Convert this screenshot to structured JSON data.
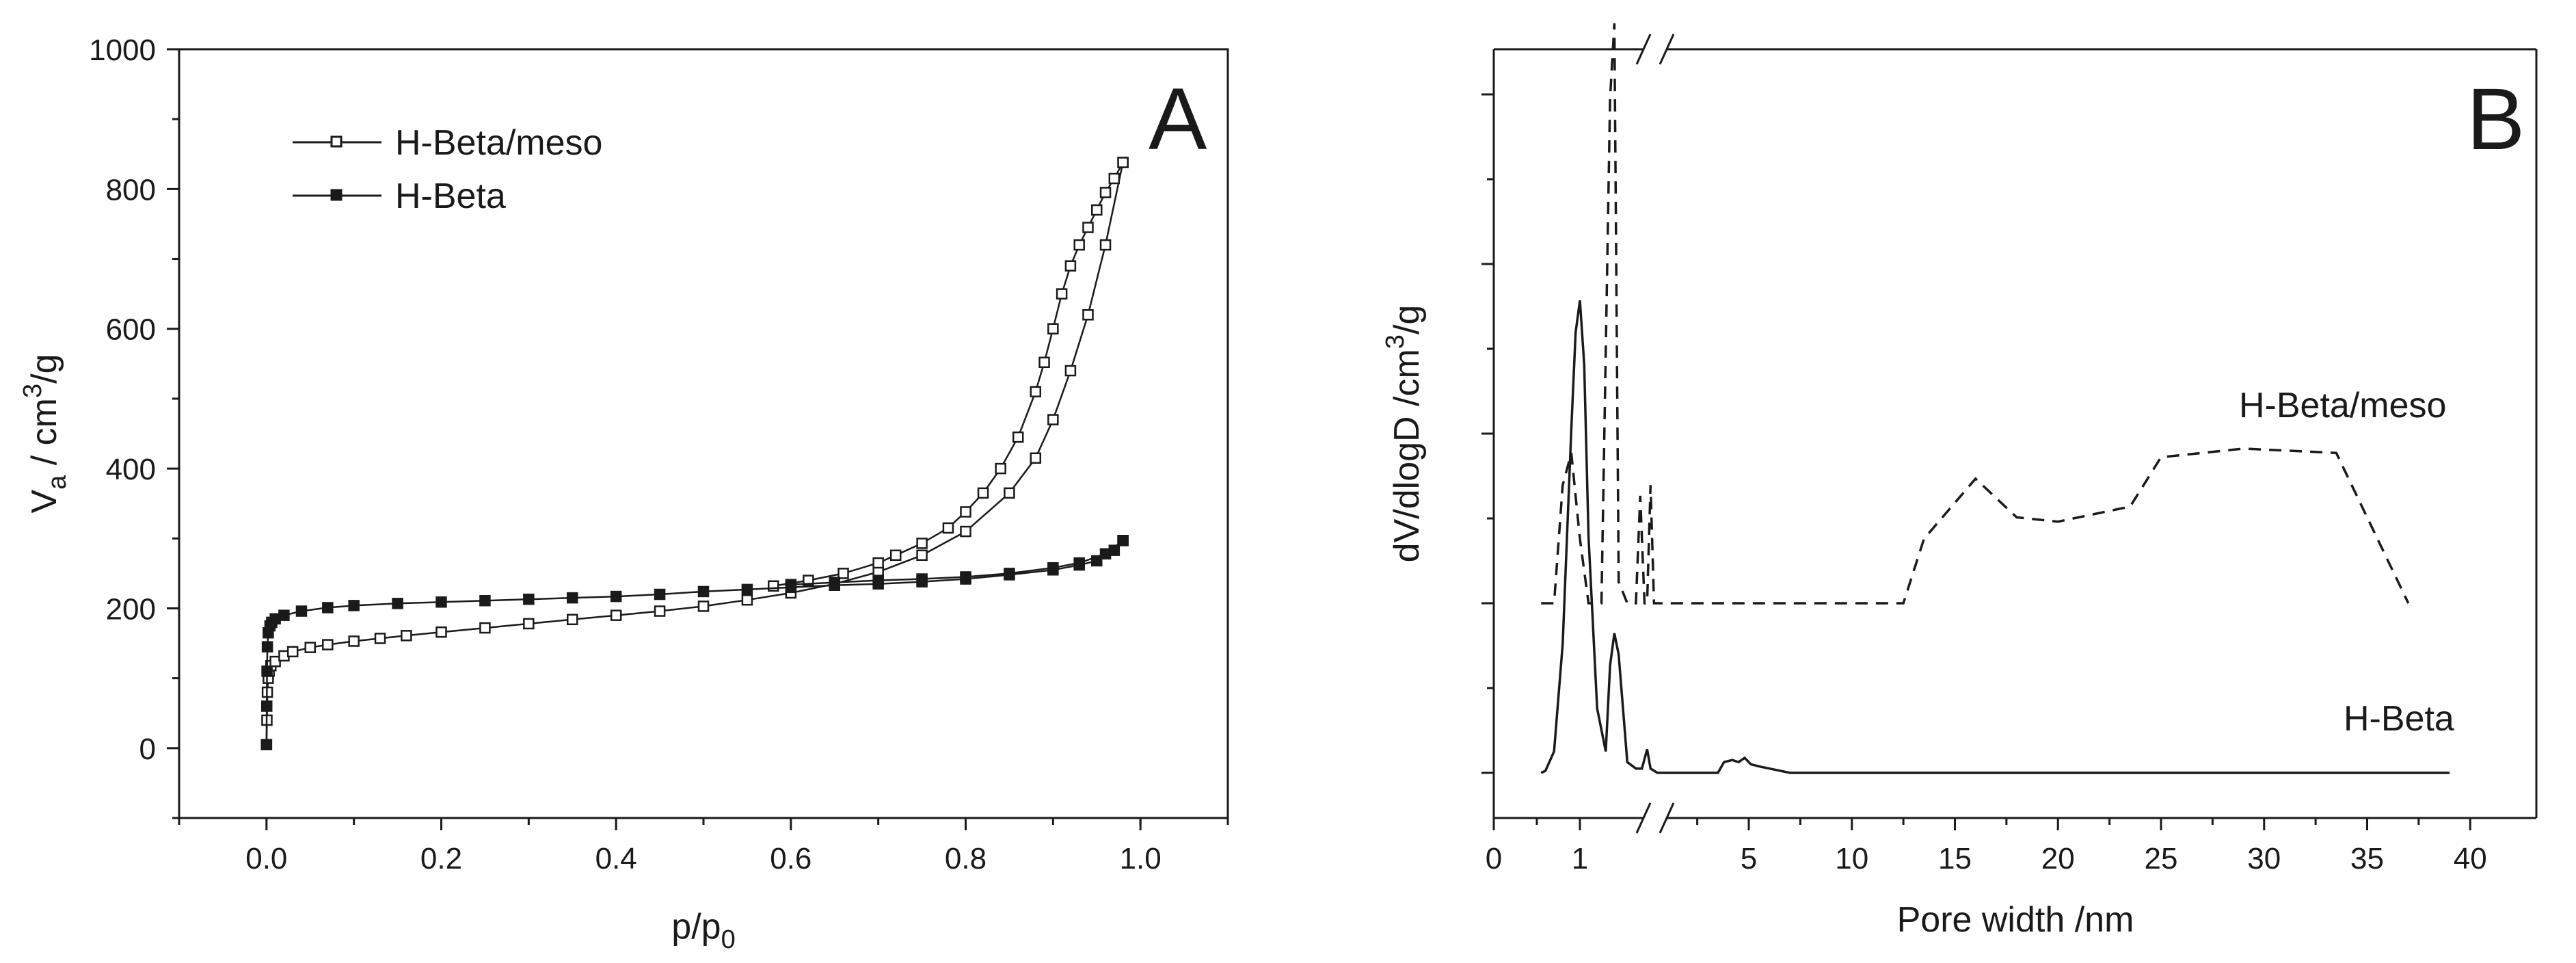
{
  "chart_data": [
    {
      "panel": "A",
      "type": "line",
      "xlabel": "p/p",
      "xlabel_sub": "0",
      "ylabel_parts": [
        "V",
        "a",
        " / cm",
        "3",
        "/g"
      ],
      "xlim": [
        -0.1,
        1.1
      ],
      "ylim": [
        -100,
        1000
      ],
      "xticks": [
        0.0,
        0.2,
        0.4,
        0.6,
        0.8,
        1.0
      ],
      "xtick_labels": [
        "0.0",
        "0.2",
        "0.4",
        "0.6",
        "0.8",
        "1.0"
      ],
      "yticks": [
        0,
        200,
        400,
        600,
        800,
        1000
      ],
      "ytick_labels": [
        "0",
        "200",
        "400",
        "600",
        "800",
        "1000"
      ],
      "grid": false,
      "legend_position": "top-left",
      "series": [
        {
          "name": "H-Beta/meso",
          "marker": "open-square",
          "adsorption": [
            [
              0.0,
              5
            ],
            [
              0.0005,
              40
            ],
            [
              0.001,
              80
            ],
            [
              0.002,
              100
            ],
            [
              0.003,
              110
            ],
            [
              0.005,
              118
            ],
            [
              0.01,
              124
            ],
            [
              0.02,
              132
            ],
            [
              0.03,
              138
            ],
            [
              0.05,
              144
            ],
            [
              0.07,
              148
            ],
            [
              0.1,
              153
            ],
            [
              0.13,
              157
            ],
            [
              0.16,
              161
            ],
            [
              0.2,
              166
            ],
            [
              0.25,
              172
            ],
            [
              0.3,
              178
            ],
            [
              0.35,
              184
            ],
            [
              0.4,
              190
            ],
            [
              0.45,
              196
            ],
            [
              0.5,
              203
            ],
            [
              0.55,
              212
            ],
            [
              0.6,
              222
            ],
            [
              0.65,
              235
            ],
            [
              0.7,
              252
            ],
            [
              0.75,
              276
            ],
            [
              0.8,
              310
            ],
            [
              0.85,
              365
            ],
            [
              0.88,
              415
            ],
            [
              0.9,
              470
            ],
            [
              0.92,
              540
            ],
            [
              0.94,
              620
            ],
            [
              0.96,
              720
            ],
            [
              0.98,
              838
            ]
          ],
          "desorption": [
            [
              0.98,
              838
            ],
            [
              0.97,
              815
            ],
            [
              0.96,
              795
            ],
            [
              0.95,
              770
            ],
            [
              0.94,
              745
            ],
            [
              0.93,
              720
            ],
            [
              0.92,
              690
            ],
            [
              0.91,
              650
            ],
            [
              0.9,
              600
            ],
            [
              0.89,
              552
            ],
            [
              0.88,
              510
            ],
            [
              0.86,
              445
            ],
            [
              0.84,
              400
            ],
            [
              0.82,
              365
            ],
            [
              0.8,
              338
            ],
            [
              0.78,
              315
            ],
            [
              0.75,
              293
            ],
            [
              0.72,
              276
            ],
            [
              0.7,
              265
            ],
            [
              0.66,
              250
            ],
            [
              0.62,
              240
            ],
            [
              0.58,
              232
            ]
          ]
        },
        {
          "name": "H-Beta",
          "marker": "filled-square",
          "adsorption": [
            [
              0.0,
              5
            ],
            [
              0.0003,
              60
            ],
            [
              0.0006,
              110
            ],
            [
              0.001,
              145
            ],
            [
              0.002,
              165
            ],
            [
              0.004,
              175
            ],
            [
              0.006,
              180
            ],
            [
              0.01,
              185
            ],
            [
              0.02,
              190
            ],
            [
              0.04,
              196
            ],
            [
              0.07,
              201
            ],
            [
              0.1,
              204
            ],
            [
              0.15,
              207
            ],
            [
              0.2,
              209
            ],
            [
              0.25,
              211
            ],
            [
              0.3,
              213
            ],
            [
              0.35,
              215
            ],
            [
              0.4,
              217
            ],
            [
              0.45,
              220
            ],
            [
              0.5,
              224
            ],
            [
              0.55,
              227
            ],
            [
              0.6,
              230
            ],
            [
              0.65,
              233
            ],
            [
              0.7,
              235
            ],
            [
              0.75,
              238
            ],
            [
              0.8,
              242
            ],
            [
              0.85,
              248
            ],
            [
              0.9,
              255
            ],
            [
              0.93,
              262
            ],
            [
              0.95,
              268
            ],
            [
              0.97,
              283
            ],
            [
              0.98,
              297
            ]
          ],
          "desorption": [
            [
              0.98,
              297
            ],
            [
              0.96,
              278
            ],
            [
              0.93,
              265
            ],
            [
              0.9,
              258
            ],
            [
              0.85,
              250
            ],
            [
              0.8,
              245
            ],
            [
              0.75,
              242
            ],
            [
              0.7,
              240
            ],
            [
              0.65,
              237
            ],
            [
              0.6,
              234
            ]
          ]
        }
      ],
      "panel_letter": "A"
    },
    {
      "panel": "B",
      "type": "line",
      "xlabel": "Pore width /nm",
      "ylabel_parts": [
        "dV/dlogD /cm",
        "3",
        "/g"
      ],
      "x_axis_break": true,
      "xtick_labels": [
        "0",
        "1",
        "5",
        "10",
        "15",
        "20",
        "25",
        "30",
        "35",
        "40"
      ],
      "yticks": "unlabeled",
      "grid": false,
      "series": [
        {
          "name": "H-Beta/meso",
          "style": "dashed",
          "label": "H-Beta/meso",
          "points": [
            [
              0.55,
              0.0
            ],
            [
              0.7,
              0.0
            ],
            [
              0.8,
              0.55
            ],
            [
              0.9,
              0.7
            ],
            [
              1.0,
              0.3
            ],
            [
              1.1,
              0.0
            ],
            [
              1.25,
              0.0
            ],
            [
              1.35,
              2.35
            ],
            [
              1.4,
              2.7
            ],
            [
              1.45,
              0.1
            ],
            [
              1.55,
              0.0
            ],
            [
              1.65,
              0.0
            ],
            [
              1.7,
              0.5
            ],
            [
              1.75,
              0.0
            ],
            [
              1.78,
              0.0
            ],
            [
              1.82,
              0.55
            ],
            [
              1.86,
              0.0
            ],
            [
              12.5,
              0.0
            ],
            [
              13.5,
              0.3
            ],
            [
              16.0,
              0.58
            ],
            [
              18.0,
              0.4
            ],
            [
              20.0,
              0.38
            ],
            [
              23.5,
              0.45
            ],
            [
              25.0,
              0.68
            ],
            [
              27.0,
              0.7
            ],
            [
              29.0,
              0.72
            ],
            [
              33.5,
              0.7
            ],
            [
              37.0,
              0.0
            ]
          ]
        },
        {
          "name": "H-Beta",
          "style": "solid",
          "label": "H-Beta",
          "points": [
            [
              0.55,
              0.0
            ],
            [
              0.6,
              0.01
            ],
            [
              0.7,
              0.1
            ],
            [
              0.8,
              0.6
            ],
            [
              0.9,
              1.6
            ],
            [
              0.95,
              2.05
            ],
            [
              1.0,
              2.2
            ],
            [
              1.05,
              1.9
            ],
            [
              1.1,
              1.1
            ],
            [
              1.2,
              0.3
            ],
            [
              1.3,
              0.1
            ],
            [
              1.35,
              0.5
            ],
            [
              1.4,
              0.65
            ],
            [
              1.45,
              0.55
            ],
            [
              1.55,
              0.05
            ],
            [
              1.65,
              0.02
            ],
            [
              1.72,
              0.02
            ],
            [
              1.78,
              0.11
            ],
            [
              1.82,
              0.02
            ],
            [
              1.9,
              0.0
            ],
            [
              3.5,
              0.0
            ],
            [
              3.8,
              0.05
            ],
            [
              4.2,
              0.06
            ],
            [
              4.5,
              0.05
            ],
            [
              4.8,
              0.07
            ],
            [
              5.1,
              0.04
            ],
            [
              5.5,
              0.03
            ],
            [
              6.0,
              0.02
            ],
            [
              7.0,
              0.0
            ],
            [
              39.0,
              0.0
            ]
          ]
        }
      ],
      "panel_letter": "B"
    }
  ]
}
